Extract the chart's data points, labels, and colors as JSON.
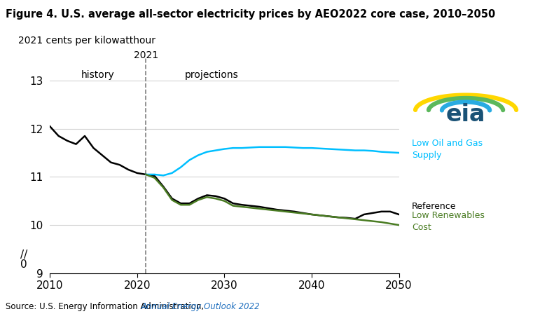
{
  "title": "Figure 4. U.S. average all-sector electricity prices by AEO2022 core case, 2010–2050",
  "ylabel": "2021 cents per kilowatthour",
  "source_text": "Source: U.S. Energy Information Administration, ",
  "source_link": "Annual Energy Outlook 2022",
  "vline_year": 2021,
  "history_label": "history",
  "projections_label": "projections",
  "year_label": "2021",
  "xlim": [
    2010,
    2050
  ],
  "xticks": [
    2010,
    2020,
    2030,
    2040,
    2050
  ],
  "reference_color": "#000000",
  "low_oil_color": "#00BFFF",
  "low_ren_color": "#4a7c23",
  "reference_label": "Reference",
  "low_oil_label": "Low Oil and Gas\nSupply",
  "low_ren_label": "Low Renewables\nCost",
  "reference_years": [
    2010,
    2011,
    2012,
    2013,
    2014,
    2015,
    2016,
    2017,
    2018,
    2019,
    2020,
    2021,
    2022,
    2023,
    2024,
    2025,
    2026,
    2027,
    2028,
    2029,
    2030,
    2031,
    2032,
    2033,
    2034,
    2035,
    2036,
    2037,
    2038,
    2039,
    2040,
    2041,
    2042,
    2043,
    2044,
    2045,
    2046,
    2047,
    2048,
    2049,
    2050
  ],
  "reference_values": [
    12.05,
    11.85,
    11.75,
    11.68,
    11.85,
    11.6,
    11.45,
    11.3,
    11.25,
    11.15,
    11.08,
    11.05,
    11.02,
    10.8,
    10.55,
    10.45,
    10.45,
    10.55,
    10.62,
    10.6,
    10.55,
    10.45,
    10.42,
    10.4,
    10.38,
    10.35,
    10.32,
    10.3,
    10.28,
    10.25,
    10.22,
    10.2,
    10.18,
    10.16,
    10.15,
    10.13,
    10.22,
    10.25,
    10.28,
    10.28,
    10.22
  ],
  "low_oil_years": [
    2021,
    2022,
    2023,
    2024,
    2025,
    2026,
    2027,
    2028,
    2029,
    2030,
    2031,
    2032,
    2033,
    2034,
    2035,
    2036,
    2037,
    2038,
    2039,
    2040,
    2041,
    2042,
    2043,
    2044,
    2045,
    2046,
    2047,
    2048,
    2049,
    2050
  ],
  "low_oil_values": [
    11.05,
    11.05,
    11.03,
    11.08,
    11.2,
    11.35,
    11.45,
    11.52,
    11.55,
    11.58,
    11.6,
    11.6,
    11.61,
    11.62,
    11.62,
    11.62,
    11.62,
    11.61,
    11.6,
    11.6,
    11.59,
    11.58,
    11.57,
    11.56,
    11.55,
    11.55,
    11.54,
    11.52,
    11.51,
    11.5
  ],
  "low_ren_years": [
    2021,
    2022,
    2023,
    2024,
    2025,
    2026,
    2027,
    2028,
    2029,
    2030,
    2031,
    2032,
    2033,
    2034,
    2035,
    2036,
    2037,
    2038,
    2039,
    2040,
    2041,
    2042,
    2043,
    2044,
    2045,
    2046,
    2047,
    2048,
    2049,
    2050
  ],
  "low_ren_values": [
    11.05,
    10.98,
    10.78,
    10.52,
    10.42,
    10.42,
    10.52,
    10.58,
    10.55,
    10.5,
    10.4,
    10.38,
    10.36,
    10.34,
    10.32,
    10.3,
    10.28,
    10.26,
    10.24,
    10.22,
    10.2,
    10.18,
    10.16,
    10.14,
    10.12,
    10.1,
    10.08,
    10.06,
    10.03,
    10.0
  ],
  "logo_eia_color": "#1a5276",
  "logo_yellow": "#FFD700",
  "logo_green": "#5cb85c",
  "logo_blue": "#29ABE2"
}
